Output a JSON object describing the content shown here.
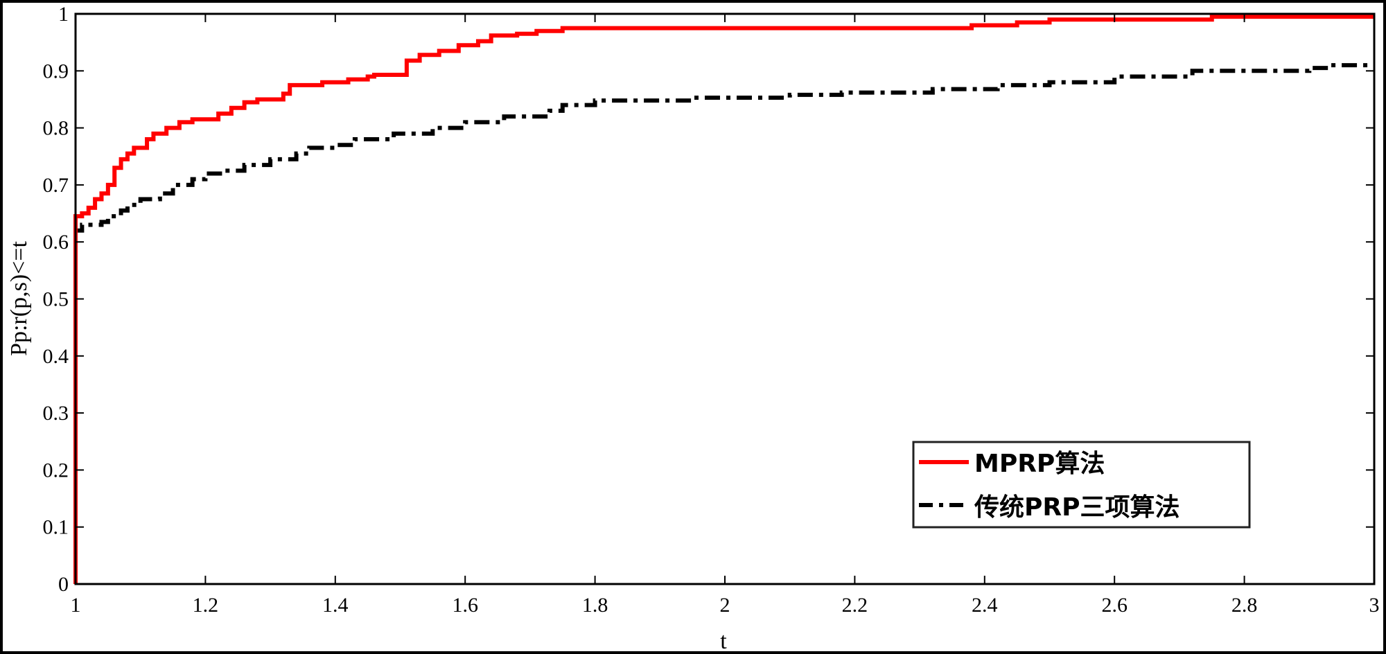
{
  "chart_data": {
    "type": "line",
    "title": "",
    "xlabel": "t",
    "ylabel": "Pp:r(p,s)<=t",
    "xlim": [
      1,
      3
    ],
    "ylim": [
      0,
      1
    ],
    "x_ticks": [
      "1",
      "1.2",
      "1.4",
      "1.6",
      "1.8",
      "2",
      "2.2",
      "2.4",
      "2.6",
      "2.8",
      "3"
    ],
    "y_ticks": [
      "0",
      "0.1",
      "0.2",
      "0.3",
      "0.4",
      "0.5",
      "0.6",
      "0.7",
      "0.8",
      "0.9",
      "1"
    ],
    "grid": false,
    "legend_position": "bottom-right",
    "series": [
      {
        "name": "MPRP算法",
        "color": "#ff0000",
        "style": "solid",
        "step": true,
        "points": [
          [
            1.0,
            0.0
          ],
          [
            1.0,
            0.645
          ],
          [
            1.01,
            0.65
          ],
          [
            1.02,
            0.66
          ],
          [
            1.03,
            0.675
          ],
          [
            1.04,
            0.685
          ],
          [
            1.05,
            0.7
          ],
          [
            1.06,
            0.73
          ],
          [
            1.07,
            0.745
          ],
          [
            1.08,
            0.755
          ],
          [
            1.09,
            0.765
          ],
          [
            1.11,
            0.78
          ],
          [
            1.12,
            0.79
          ],
          [
            1.14,
            0.8
          ],
          [
            1.16,
            0.81
          ],
          [
            1.18,
            0.815
          ],
          [
            1.22,
            0.825
          ],
          [
            1.24,
            0.835
          ],
          [
            1.26,
            0.845
          ],
          [
            1.28,
            0.85
          ],
          [
            1.32,
            0.86
          ],
          [
            1.33,
            0.875
          ],
          [
            1.38,
            0.88
          ],
          [
            1.42,
            0.885
          ],
          [
            1.45,
            0.89
          ],
          [
            1.46,
            0.893
          ],
          [
            1.51,
            0.918
          ],
          [
            1.53,
            0.928
          ],
          [
            1.56,
            0.935
          ],
          [
            1.59,
            0.945
          ],
          [
            1.62,
            0.952
          ],
          [
            1.64,
            0.962
          ],
          [
            1.68,
            0.965
          ],
          [
            1.71,
            0.97
          ],
          [
            1.75,
            0.975
          ],
          [
            2.35,
            0.975
          ],
          [
            2.38,
            0.98
          ],
          [
            2.45,
            0.985
          ],
          [
            2.5,
            0.99
          ],
          [
            2.75,
            0.995
          ],
          [
            3.0,
            0.995
          ]
        ]
      },
      {
        "name": "传统PRP三项算法",
        "color": "#000000",
        "style": "dashdot",
        "step": true,
        "points": [
          [
            1.0,
            0.0
          ],
          [
            1.0,
            0.62
          ],
          [
            1.01,
            0.63
          ],
          [
            1.04,
            0.635
          ],
          [
            1.05,
            0.645
          ],
          [
            1.07,
            0.655
          ],
          [
            1.08,
            0.665
          ],
          [
            1.1,
            0.675
          ],
          [
            1.13,
            0.685
          ],
          [
            1.15,
            0.7
          ],
          [
            1.18,
            0.71
          ],
          [
            1.2,
            0.72
          ],
          [
            1.23,
            0.725
          ],
          [
            1.26,
            0.735
          ],
          [
            1.3,
            0.745
          ],
          [
            1.34,
            0.755
          ],
          [
            1.36,
            0.765
          ],
          [
            1.4,
            0.77
          ],
          [
            1.43,
            0.78
          ],
          [
            1.49,
            0.79
          ],
          [
            1.55,
            0.8
          ],
          [
            1.6,
            0.81
          ],
          [
            1.66,
            0.82
          ],
          [
            1.73,
            0.83
          ],
          [
            1.75,
            0.84
          ],
          [
            1.8,
            0.848
          ],
          [
            1.95,
            0.853
          ],
          [
            2.1,
            0.858
          ],
          [
            2.18,
            0.862
          ],
          [
            2.32,
            0.868
          ],
          [
            2.42,
            0.875
          ],
          [
            2.5,
            0.88
          ],
          [
            2.6,
            0.89
          ],
          [
            2.72,
            0.9
          ],
          [
            2.9,
            0.905
          ],
          [
            2.93,
            0.91
          ],
          [
            3.0,
            0.91
          ]
        ]
      }
    ]
  }
}
